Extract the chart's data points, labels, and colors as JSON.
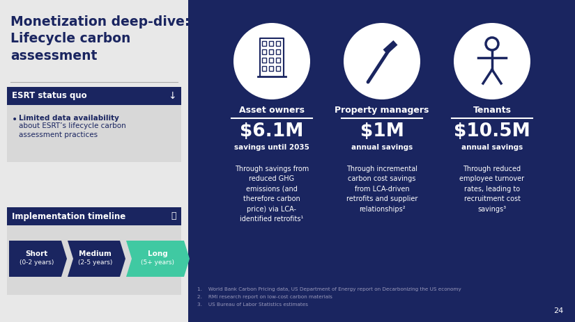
{
  "title": "Monetization deep-dive:\nLifecycle carbon\nassessment",
  "bg_left": "#e8e8e8",
  "bg_right": "#1a2560",
  "dark_blue": "#1a2560",
  "teal": "#40c9a2",
  "white": "#ffffff",
  "esrt_header": "ESRT status quo",
  "esrt_bullet_bold": "Limited data availability",
  "timeline_header": "Implementation timeline",
  "timeline_items": [
    "Short\n(0-2 years)",
    "Medium\n(2-5 years)",
    "Long\n(5+ years)"
  ],
  "timeline_colors": [
    "#1a2560",
    "#1a2560",
    "#40c9a2"
  ],
  "stakeholders": [
    "Asset owners",
    "Property managers",
    "Tenants"
  ],
  "amounts": [
    "$6.1M",
    "$1M",
    "$10.5M"
  ],
  "amount_subtitles": [
    "savings until 2035",
    "annual savings",
    "annual savings"
  ],
  "descriptions": [
    "Through savings from\nreduced GHG\nemissions (and\ntherefore carbon\nprice) via LCA-\nidentified retrofits¹",
    "Through incremental\ncarbon cost savings\nfrom LCA-driven\nretrofits and supplier\nrelationships²",
    "Through reduced\nemployee turnover\nrates, leading to\nrecruitment cost\nsavings³"
  ],
  "footnotes": [
    "1.    World Bank Carbon Pricing data, US Department of Energy report on Decarbonizing the US economy",
    "2.    RMI research report on low-cost carbon materials",
    "3.    US Bureau of Labor Statistics estimates"
  ],
  "page_num": "24"
}
